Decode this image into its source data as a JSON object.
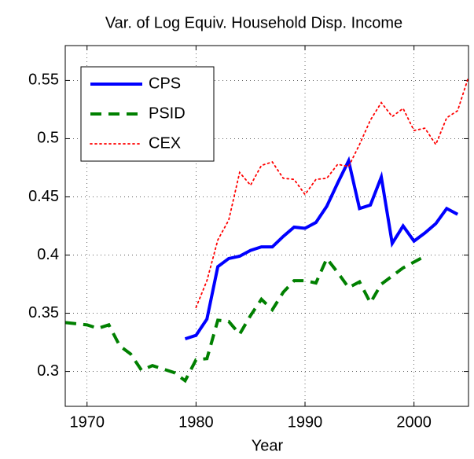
{
  "chart_data": {
    "type": "line",
    "title": "Var. of Log Equiv. Household Disp. Income",
    "xlabel": "Year",
    "xlim": [
      1968,
      2005
    ],
    "xticks": [
      1970,
      1980,
      1990,
      2000
    ],
    "ylim": [
      0.27,
      0.58
    ],
    "yticks": [
      0.3,
      0.35,
      0.4,
      0.45,
      0.5,
      0.55
    ],
    "grid": true,
    "legend": "upper left",
    "series": [
      {
        "name": "CPS",
        "color": "#0000ff",
        "style": "solid",
        "x": [
          1979,
          1980,
          1981,
          1982,
          1983,
          1984,
          1985,
          1986,
          1987,
          1988,
          1989,
          1990,
          1991,
          1992,
          1993,
          1994,
          1995,
          1996,
          1997,
          1998,
          1999,
          2000,
          2001,
          2002,
          2003,
          2004
        ],
        "values": [
          0.328,
          0.331,
          0.345,
          0.39,
          0.397,
          0.399,
          0.404,
          0.407,
          0.407,
          0.416,
          0.424,
          0.423,
          0.428,
          0.442,
          0.462,
          0.481,
          0.44,
          0.443,
          0.467,
          0.41,
          0.425,
          0.412,
          0.419,
          0.427,
          0.44,
          0.435
        ]
      },
      {
        "name": "PSID",
        "color": "#008000",
        "style": "dashed",
        "x": [
          1968,
          1969,
          1970,
          1971,
          1972,
          1973,
          1974,
          1975,
          1976,
          1977,
          1978,
          1979,
          1980,
          1981,
          1982,
          1983,
          1984,
          1985,
          1986,
          1987,
          1988,
          1989,
          1990,
          1991,
          1992,
          1993,
          1994,
          1995,
          1996,
          1997,
          1999,
          2001
        ],
        "values": [
          0.342,
          0.341,
          0.34,
          0.337,
          0.34,
          0.322,
          0.315,
          0.301,
          0.305,
          0.302,
          0.299,
          0.292,
          0.31,
          0.311,
          0.344,
          0.343,
          0.332,
          0.348,
          0.362,
          0.353,
          0.368,
          0.378,
          0.378,
          0.376,
          0.397,
          0.385,
          0.372,
          0.377,
          0.359,
          0.375,
          0.389,
          0.399
        ]
      },
      {
        "name": "CEX",
        "color": "#ff0000",
        "style": "dotted",
        "x": [
          1980,
          1981,
          1982,
          1983,
          1984,
          1985,
          1986,
          1987,
          1988,
          1989,
          1990,
          1991,
          1992,
          1993,
          1994,
          1995,
          1996,
          1997,
          1998,
          1999,
          2000,
          2001,
          2002,
          2003,
          2004,
          2005
        ],
        "values": [
          0.355,
          0.378,
          0.413,
          0.43,
          0.471,
          0.46,
          0.477,
          0.48,
          0.466,
          0.465,
          0.452,
          0.465,
          0.466,
          0.478,
          0.476,
          0.495,
          0.516,
          0.531,
          0.519,
          0.526,
          0.507,
          0.509,
          0.495,
          0.518,
          0.524,
          0.553
        ]
      }
    ]
  }
}
